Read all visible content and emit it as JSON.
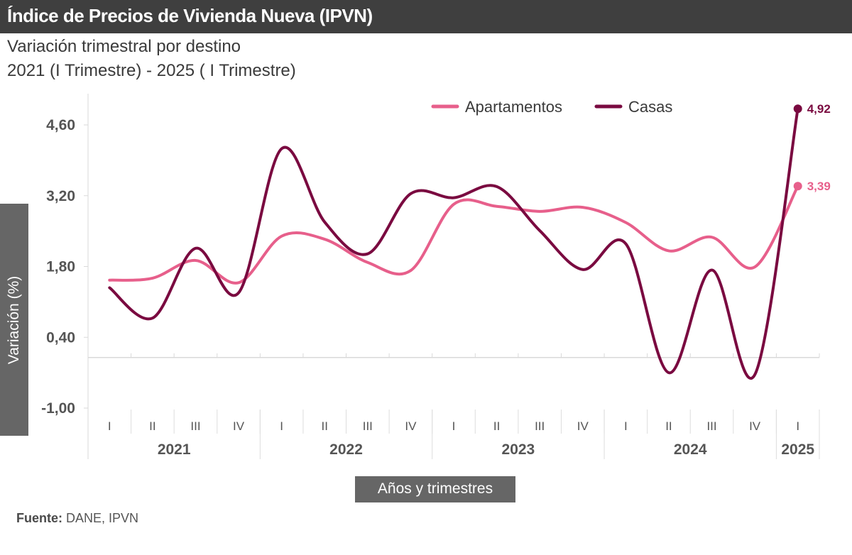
{
  "header": {
    "title": "Índice de Precios de Vivienda Nueva  (IPVN)",
    "subtitle_line1": "Variación trimestral por destino",
    "subtitle_line2": "2021 (I Trimestre) - 2025 ( I Trimestre)"
  },
  "axes": {
    "y_title": "Variación (%)",
    "x_title": "Años y trimestres"
  },
  "footer": {
    "source_label": "Fuente:",
    "source_value": " DANE, IPVN"
  },
  "chart_data": {
    "type": "line",
    "title": "Índice de Precios de Vivienda Nueva  (IPVN)",
    "subtitle": "Variación trimestral por destino, 2021 (I Trimestre) - 2025 ( I Trimestre)",
    "xlabel": "Años y trimestres",
    "ylabel": "Variación (%)",
    "ylim": [
      -1.0,
      5.0
    ],
    "yticks": [
      -1.0,
      0.4,
      1.8,
      3.2,
      4.6
    ],
    "ytick_labels": [
      "-1,00",
      "0,40",
      "1,80",
      "3,20",
      "4,60"
    ],
    "grid": false,
    "smooth": true,
    "legend_position": "top-right",
    "categories": [
      "2021-I",
      "2021-II",
      "2021-III",
      "2021-IV",
      "2022-I",
      "2022-II",
      "2022-III",
      "2022-IV",
      "2023-I",
      "2023-II",
      "2023-III",
      "2023-IV",
      "2024-I",
      "2024-II",
      "2024-III",
      "2024-IV",
      "2025-I"
    ],
    "quarter_labels": [
      "I",
      "II",
      "III",
      "IV",
      "I",
      "II",
      "III",
      "IV",
      "I",
      "II",
      "III",
      "IV",
      "I",
      "II",
      "III",
      "IV",
      "I"
    ],
    "year_groups": [
      {
        "label": "2021",
        "count": 4
      },
      {
        "label": "2022",
        "count": 4
      },
      {
        "label": "2023",
        "count": 4
      },
      {
        "label": "2024",
        "count": 4
      },
      {
        "label": "2025",
        "count": 1
      }
    ],
    "series": [
      {
        "name": "Apartamentos",
        "color": "#e75f8b",
        "values": [
          1.53,
          1.57,
          1.92,
          1.48,
          2.4,
          2.34,
          1.88,
          1.72,
          3.03,
          2.99,
          2.89,
          2.97,
          2.67,
          2.11,
          2.38,
          1.79,
          3.39
        ],
        "end_label": "3,39"
      },
      {
        "name": "Casas",
        "color": "#7a0a40",
        "values": [
          1.38,
          0.78,
          2.16,
          1.28,
          4.13,
          2.68,
          2.05,
          3.24,
          3.16,
          3.38,
          2.51,
          1.74,
          2.25,
          -0.3,
          1.73,
          -0.34,
          4.92
        ],
        "end_label": "4,92"
      }
    ]
  }
}
